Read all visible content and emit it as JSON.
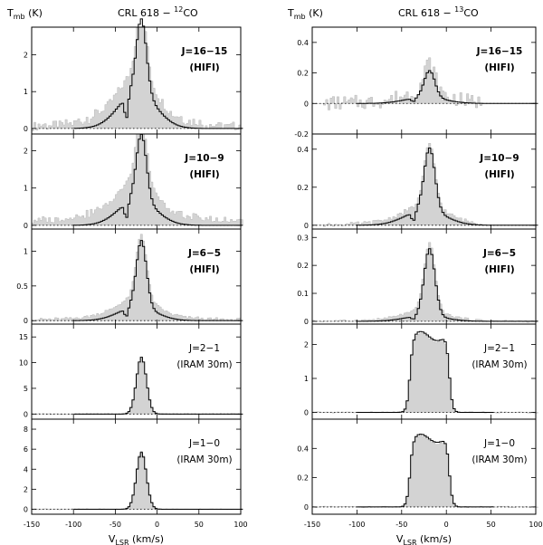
{
  "chart_data": [
    {
      "type": "line",
      "title": "CRL 618 − ",
      "title_iso": "12",
      "title_mol": "CO",
      "ylabel_main": "T",
      "ylabel_sub": "mb",
      "ylabel_unit": " (K)",
      "xlabel_main": "V",
      "xlabel_sub": "LSR",
      "xlabel_unit": " (km/s)",
      "xlim": [
        -150,
        100
      ],
      "xticks": [
        -150,
        -100,
        -50,
        0,
        50,
        100
      ],
      "panels": [
        {
          "label": "J=16−15",
          "instrument": "(HIFI)",
          "bold": true,
          "ylim": [
            -0.15,
            2.75
          ],
          "yticks": [
            0,
            1,
            2
          ],
          "center": -20,
          "obs_peak": 2.3,
          "obs_wing": 1.1,
          "model_peak": 2.5,
          "model_wing": 1.0,
          "noise": 0.12,
          "baseline": 0.1
        },
        {
          "label": "J=10−9",
          "instrument": "(HIFI)",
          "bold": true,
          "ylim": [
            -0.1,
            2.45
          ],
          "yticks": [
            0,
            1,
            2
          ],
          "center": -20,
          "obs_peak": 2.1,
          "obs_wing": 0.95,
          "model_peak": 2.2,
          "model_wing": 0.7,
          "noise": 0.05,
          "baseline": 0.2
        },
        {
          "label": "J=6−5",
          "instrument": "(HIFI)",
          "bold": true,
          "ylim": [
            -0.05,
            1.32
          ],
          "yticks": [
            0,
            0.5,
            1
          ],
          "center": -20,
          "obs_peak": 1.15,
          "obs_wing": 0.25,
          "model_peak": 1.2,
          "model_wing": 0.2,
          "noise": 0.02,
          "baseline": 0.02
        },
        {
          "label": "J=2−1",
          "instrument": "(IRAM 30m)",
          "bold": false,
          "ylim": [
            -1,
            17.5
          ],
          "yticks": [
            0,
            5,
            10,
            15
          ],
          "center": -20,
          "obs_peak": 13.5,
          "obs_wing": 0,
          "model_peak": 13.8,
          "model_wing": 0,
          "noise": 0.1,
          "baseline": 0
        },
        {
          "label": "J=1−0",
          "instrument": "(IRAM 30m)",
          "bold": false,
          "ylim": [
            -0.5,
            9
          ],
          "yticks": [
            0,
            2,
            4,
            6,
            8
          ],
          "center": -20,
          "obs_peak": 7.3,
          "obs_wing": 0,
          "model_peak": 7.1,
          "model_wing": 0,
          "noise": 0.05,
          "baseline": 0
        }
      ]
    },
    {
      "type": "line",
      "title": "CRL 618 − ",
      "title_iso": "13",
      "title_mol": "CO",
      "ylabel_main": "T",
      "ylabel_sub": "mb",
      "ylabel_unit": " (K)",
      "xlabel_main": "V",
      "xlabel_sub": "LSR",
      "xlabel_unit": " (km/s)",
      "xlim": [
        -150,
        100
      ],
      "xticks": [
        -150,
        -100,
        -50,
        0,
        50,
        100
      ],
      "panels": [
        {
          "label": "J=16−15",
          "instrument": "(HIFI)",
          "bold": true,
          "ylim": [
            -0.2,
            0.5
          ],
          "yticks": [
            -0.2,
            0,
            0.2,
            0.4
          ],
          "center": -20,
          "obs_peak": 0.24,
          "obs_wing": 0.06,
          "model_peak": 0.22,
          "model_wing": 0.04,
          "noise": 0.05,
          "baseline": 0
        },
        {
          "label": "J=10−9",
          "instrument": "(HIFI)",
          "bold": true,
          "ylim": [
            -0.02,
            0.48
          ],
          "yticks": [
            0,
            0.2,
            0.4
          ],
          "center": -20,
          "obs_peak": 0.4,
          "obs_wing": 0.08,
          "model_peak": 0.41,
          "model_wing": 0.08,
          "noise": 0.01,
          "baseline": 0
        },
        {
          "label": "J=6−5",
          "instrument": "(HIFI)",
          "bold": true,
          "ylim": [
            -0.01,
            0.33
          ],
          "yticks": [
            0,
            0.1,
            0.2,
            0.3
          ],
          "center": -20,
          "obs_peak": 0.3,
          "obs_wing": 0.03,
          "model_peak": 0.3,
          "model_wing": 0.02,
          "noise": 0.004,
          "baseline": 0
        },
        {
          "label": "J=2−1",
          "instrument": "(IRAM 30m)",
          "bold": false,
          "ylim": [
            -0.2,
            2.6
          ],
          "yticks": [
            0,
            1,
            2
          ],
          "center": -20,
          "obs_peak": 2.2,
          "obs_wing": 0,
          "model_peak": 2.25,
          "model_wing": 0,
          "noise": 0.02,
          "baseline": 0,
          "flat": true
        },
        {
          "label": "J=1−0",
          "instrument": "(IRAM 30m)",
          "bold": false,
          "ylim": [
            -0.05,
            0.6
          ],
          "yticks": [
            0,
            0.2,
            0.4
          ],
          "center": -20,
          "obs_peak": 0.46,
          "obs_wing": 0,
          "model_peak": 0.47,
          "model_wing": 0,
          "noise": 0.005,
          "baseline": 0,
          "flat": true
        }
      ]
    }
  ]
}
